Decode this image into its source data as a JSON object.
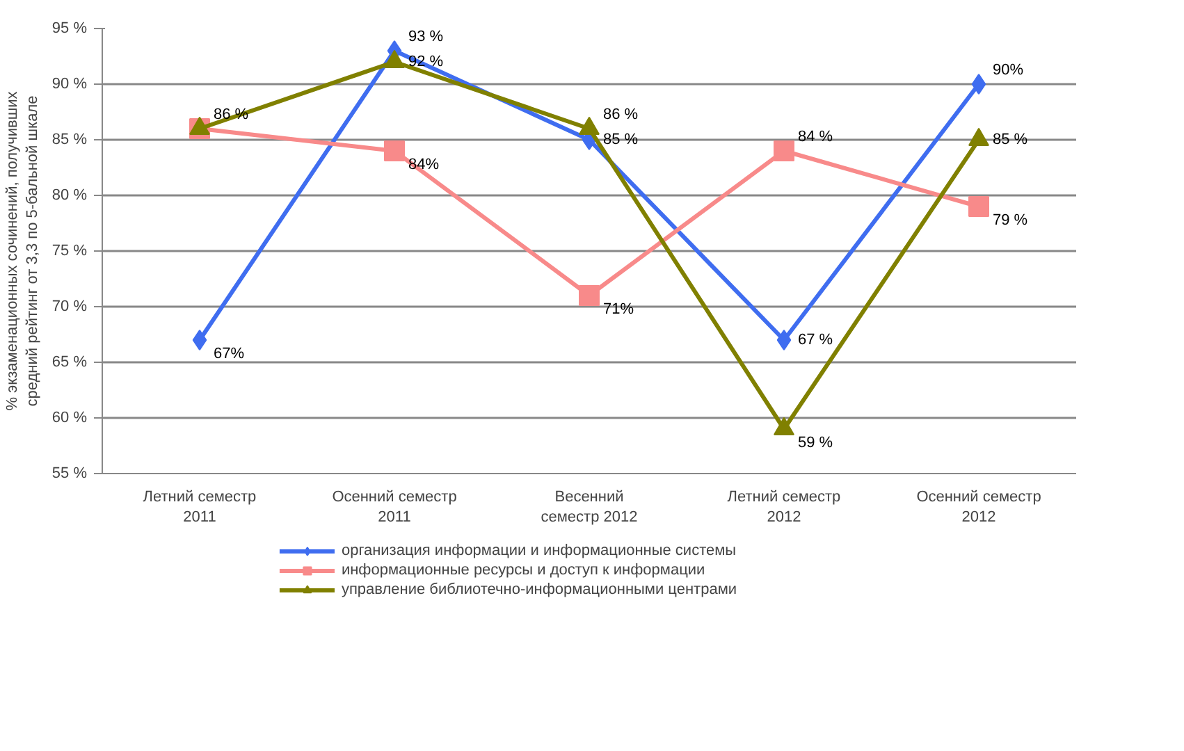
{
  "chart_data": {
    "type": "line",
    "ylabel": "% экзаменационных сочинений, получивших\nсредний рейтинг от 3,3 по 5-бальной шкале",
    "categories": [
      "Летний семестр\n2011",
      "Осенний семестр\n2011",
      "Весенний\nсеместр 2012",
      "Летний семестр\n2012",
      "Осенний семестр\n2012"
    ],
    "series": [
      {
        "name": "организация информации и информационные системы",
        "color": "#3f6df0",
        "marker": "diamond",
        "values": [
          67,
          93,
          85,
          67,
          90
        ],
        "value_labels": [
          "67%",
          "93 %",
          "85 %",
          "67 %",
          "90%"
        ]
      },
      {
        "name": "информационные ресурсы и доступ к информации",
        "color": "#f88a8a",
        "marker": "square",
        "values": [
          86,
          84,
          71,
          84,
          79
        ],
        "value_labels": [
          "86 %",
          "84%",
          "71%",
          "84 %",
          "79 %"
        ]
      },
      {
        "name": "управление библиотечно-информационными центрами",
        "color": "#808000",
        "marker": "triangle",
        "values": [
          86,
          92,
          86,
          59,
          85
        ],
        "value_labels": [
          null,
          "92 %",
          "86 %",
          "59 %",
          "85 %"
        ]
      }
    ],
    "ylim": [
      55,
      95
    ],
    "yticks": [
      {
        "value": 55,
        "label": "55 %"
      },
      {
        "value": 60,
        "label": "60 %"
      },
      {
        "value": 65,
        "label": "65 %"
      },
      {
        "value": 70,
        "label": "70 %"
      },
      {
        "value": 75,
        "label": "75 %"
      },
      {
        "value": 80,
        "label": "80 %"
      },
      {
        "value": 85,
        "label": "85 %"
      },
      {
        "value": 90,
        "label": "90 %"
      },
      {
        "value": 95,
        "label": "95 %"
      }
    ],
    "grid": "y",
    "legend": "bottom",
    "line_style": "solid"
  }
}
